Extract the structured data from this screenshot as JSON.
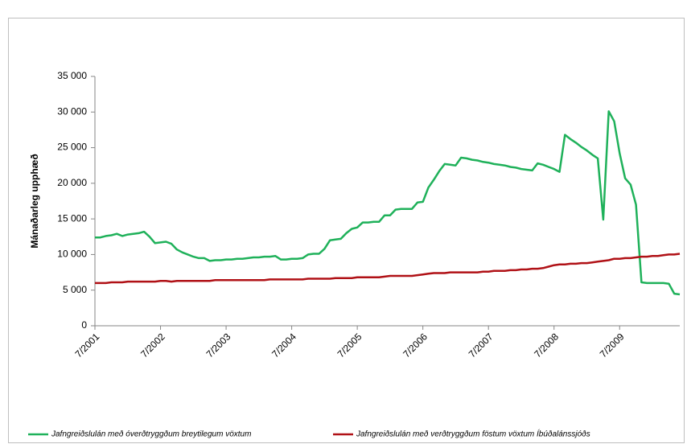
{
  "chart_data": {
    "type": "line",
    "y_label": "Mánaðarleg upphæð",
    "categories": [
      "7/2001",
      null,
      null,
      null,
      null,
      null,
      null,
      null,
      null,
      null,
      null,
      null,
      "7/2002",
      null,
      null,
      null,
      null,
      null,
      null,
      null,
      null,
      null,
      null,
      null,
      "7/2003",
      null,
      null,
      null,
      null,
      null,
      null,
      null,
      null,
      null,
      null,
      null,
      "7/2004",
      null,
      null,
      null,
      null,
      null,
      null,
      null,
      null,
      null,
      null,
      null,
      "7/2005",
      null,
      null,
      null,
      null,
      null,
      null,
      null,
      null,
      null,
      null,
      null,
      "7/2006",
      null,
      null,
      null,
      null,
      null,
      null,
      null,
      null,
      null,
      null,
      null,
      "7/2007",
      null,
      null,
      null,
      null,
      null,
      null,
      null,
      null,
      null,
      null,
      null,
      "7/2008",
      null,
      null,
      null,
      null,
      null,
      null,
      null,
      null,
      null,
      null,
      null,
      "7/2009",
      null,
      null,
      null,
      null,
      null,
      null,
      null,
      null,
      null,
      null,
      null
    ],
    "series": [
      {
        "name": "Jafngreiðslulán með óverðtryggðum breytilegum vöxtum",
        "color": "#1fb15a",
        "values": [
          12400,
          12400,
          12600,
          12700,
          12900,
          12600,
          12800,
          12900,
          13000,
          13200,
          12500,
          11600,
          11700,
          11800,
          11500,
          10700,
          10300,
          10000,
          9700,
          9500,
          9500,
          9100,
          9200,
          9200,
          9300,
          9300,
          9400,
          9400,
          9500,
          9600,
          9600,
          9700,
          9700,
          9800,
          9300,
          9300,
          9400,
          9400,
          9500,
          10000,
          10100,
          10100,
          10800,
          12000,
          12100,
          12200,
          13000,
          13600,
          13800,
          14500,
          14500,
          14600,
          14600,
          15500,
          15500,
          16300,
          16400,
          16400,
          16400,
          17300,
          17400,
          19400,
          20500,
          21700,
          22700,
          22600,
          22500,
          23600,
          23500,
          23300,
          23200,
          23000,
          22900,
          22700,
          22600,
          22500,
          22300,
          22200,
          22000,
          21900,
          21800,
          22800,
          22600,
          22300,
          22000,
          21600,
          26800,
          26200,
          25700,
          25100,
          24600,
          24000,
          23500,
          14900,
          30100,
          28700,
          24200,
          20700,
          19800,
          17000,
          6100,
          6000,
          6000,
          6000,
          6000,
          5900,
          4500,
          4400
        ]
      },
      {
        "name": "Jafngreiðslulán með verðtryggðum föstum vöxtum Íbúðalánssjóðs",
        "color": "#b01116",
        "values": [
          6000,
          6000,
          6000,
          6100,
          6100,
          6100,
          6200,
          6200,
          6200,
          6200,
          6200,
          6200,
          6300,
          6300,
          6200,
          6300,
          6300,
          6300,
          6300,
          6300,
          6300,
          6300,
          6400,
          6400,
          6400,
          6400,
          6400,
          6400,
          6400,
          6400,
          6400,
          6400,
          6500,
          6500,
          6500,
          6500,
          6500,
          6500,
          6500,
          6600,
          6600,
          6600,
          6600,
          6600,
          6700,
          6700,
          6700,
          6700,
          6800,
          6800,
          6800,
          6800,
          6800,
          6900,
          7000,
          7000,
          7000,
          7000,
          7000,
          7100,
          7200,
          7300,
          7400,
          7400,
          7400,
          7500,
          7500,
          7500,
          7500,
          7500,
          7500,
          7600,
          7600,
          7700,
          7700,
          7700,
          7800,
          7800,
          7900,
          7900,
          8000,
          8000,
          8100,
          8300,
          8500,
          8600,
          8600,
          8700,
          8700,
          8800,
          8800,
          8900,
          9000,
          9100,
          9200,
          9400,
          9400,
          9500,
          9500,
          9600,
          9700,
          9700,
          9800,
          9800,
          9900,
          10000,
          10000,
          10100
        ]
      }
    ],
    "ylim": [
      0,
      35000
    ],
    "yticks": [
      0,
      {
        "value": 5000,
        "label": "5 000"
      },
      {
        "value": 10000,
        "label": "10 000"
      },
      {
        "value": 15000,
        "label": "15 000"
      },
      {
        "value": 20000,
        "label": "20 000"
      },
      {
        "value": 25000,
        "label": "25 000"
      },
      {
        "value": 30000,
        "label": "30 000"
      },
      {
        "value": 35000,
        "label": "35 000"
      }
    ],
    "grid": false,
    "legend": "bottom"
  }
}
